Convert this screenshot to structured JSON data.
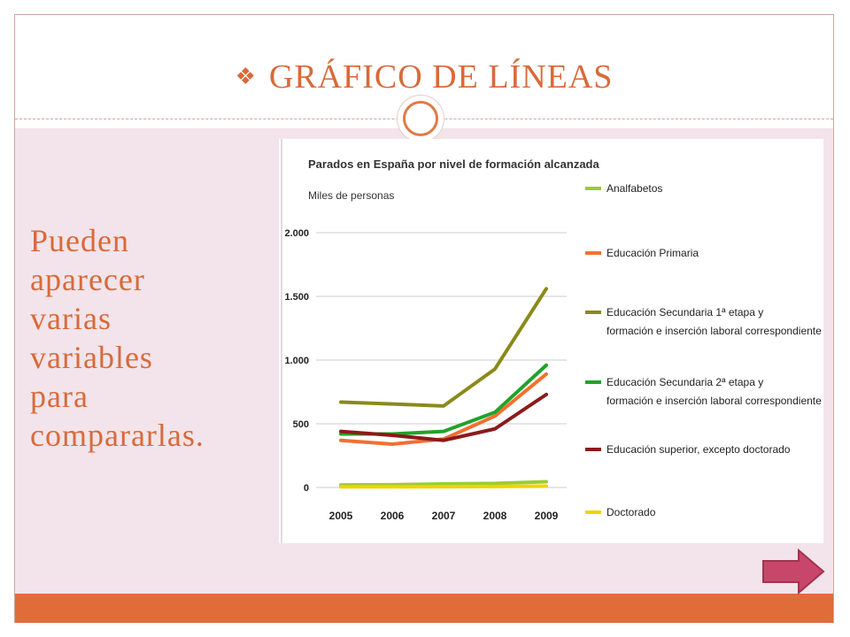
{
  "slide": {
    "title": "GRÁFICO DE LÍNEAS",
    "title_bullet": "❖",
    "body_lines": [
      "Pueden",
      "aparecer",
      "varias",
      "variables",
      "para",
      "compararlas."
    ],
    "next_button_icon": "arrow-right-icon"
  },
  "colors": {
    "accent": "#e06c3a",
    "title": "#d86a3a",
    "content_bg": "#f2e4ea",
    "next_button": "#c8466a"
  },
  "chart_data": {
    "type": "line",
    "title": "Parados en España por nivel de formación alcanzada",
    "subtitle": "Miles de personas",
    "xlabel": "",
    "ylabel": "",
    "x": [
      "2005",
      "2006",
      "2007",
      "2008",
      "2009"
    ],
    "ylim": [
      0,
      2000
    ],
    "yticks": [
      0,
      500,
      1000,
      1500,
      2000
    ],
    "ytick_labels": [
      "0",
      "500",
      "1.000",
      "1.500",
      "2.000"
    ],
    "grid": true,
    "legend_position": "right",
    "series": [
      {
        "name": "Analfabetos",
        "color": "#9acd32",
        "values": [
          20,
          22,
          28,
          32,
          45
        ]
      },
      {
        "name": "Educación Primaria",
        "color": "#f07030",
        "values": [
          370,
          340,
          380,
          560,
          890
        ]
      },
      {
        "name": "Educación Secundaria 1ª etapa y formación e inserción laboral correspondiente",
        "color": "#8a8a1a",
        "values": [
          670,
          655,
          640,
          930,
          1560
        ]
      },
      {
        "name": "Educación Secundaria 2ª etapa y formación e inserción laboral correspondiente",
        "color": "#22a22a",
        "values": [
          420,
          420,
          440,
          590,
          960
        ]
      },
      {
        "name": "Educación superior, excepto doctorado",
        "color": "#8b1a1a",
        "values": [
          440,
          410,
          370,
          460,
          730
        ]
      },
      {
        "name": "Doctorado",
        "color": "#f2d200",
        "values": [
          5,
          5,
          6,
          8,
          10
        ]
      }
    ]
  }
}
